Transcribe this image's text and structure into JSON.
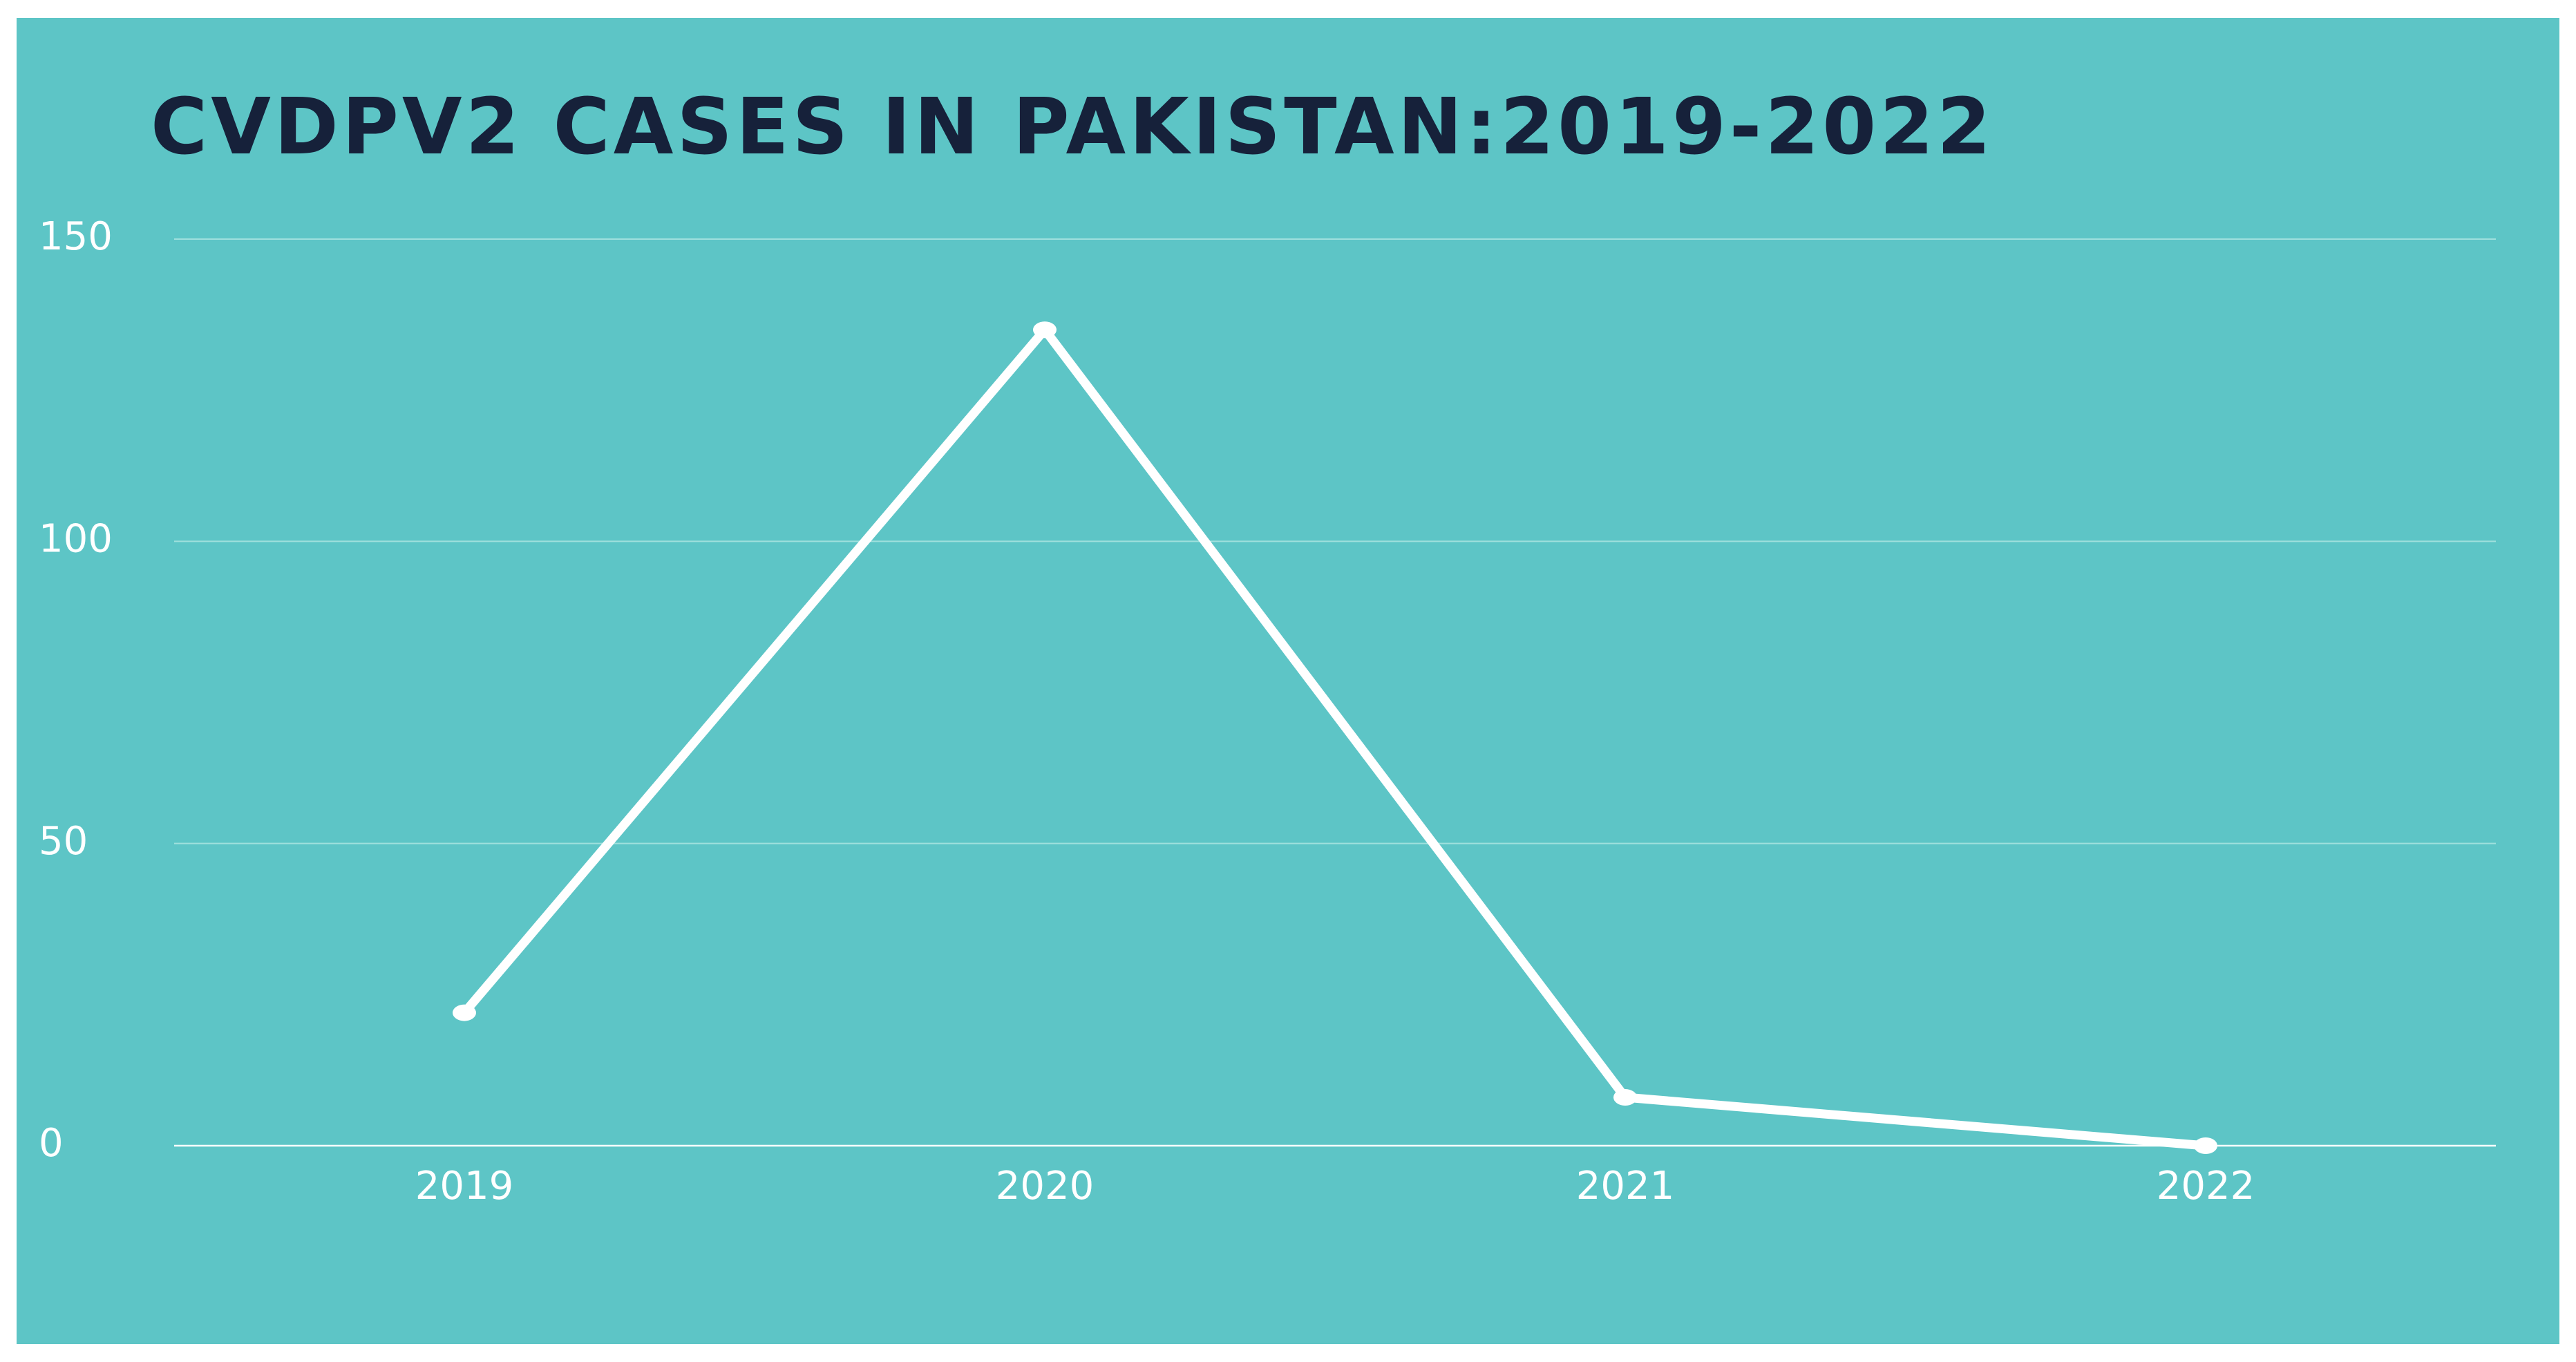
{
  "chart_data": {
    "type": "line",
    "title": "CVDPV2 CASES IN PAKISTAN:2019-2022",
    "xlabel": "",
    "ylabel": "",
    "categories": [
      "2019",
      "2020",
      "2021",
      "2022"
    ],
    "series": [
      {
        "values": [
          22,
          135,
          8,
          0
        ]
      }
    ],
    "ylim": [
      0,
      150
    ],
    "yticks": [
      0,
      50,
      100,
      150
    ],
    "grid": true,
    "legend": "none",
    "colors": {
      "background": "#5dc5c6",
      "line": "#ffffff",
      "title": "#16213a",
      "grid": "#9fe0dd"
    }
  }
}
